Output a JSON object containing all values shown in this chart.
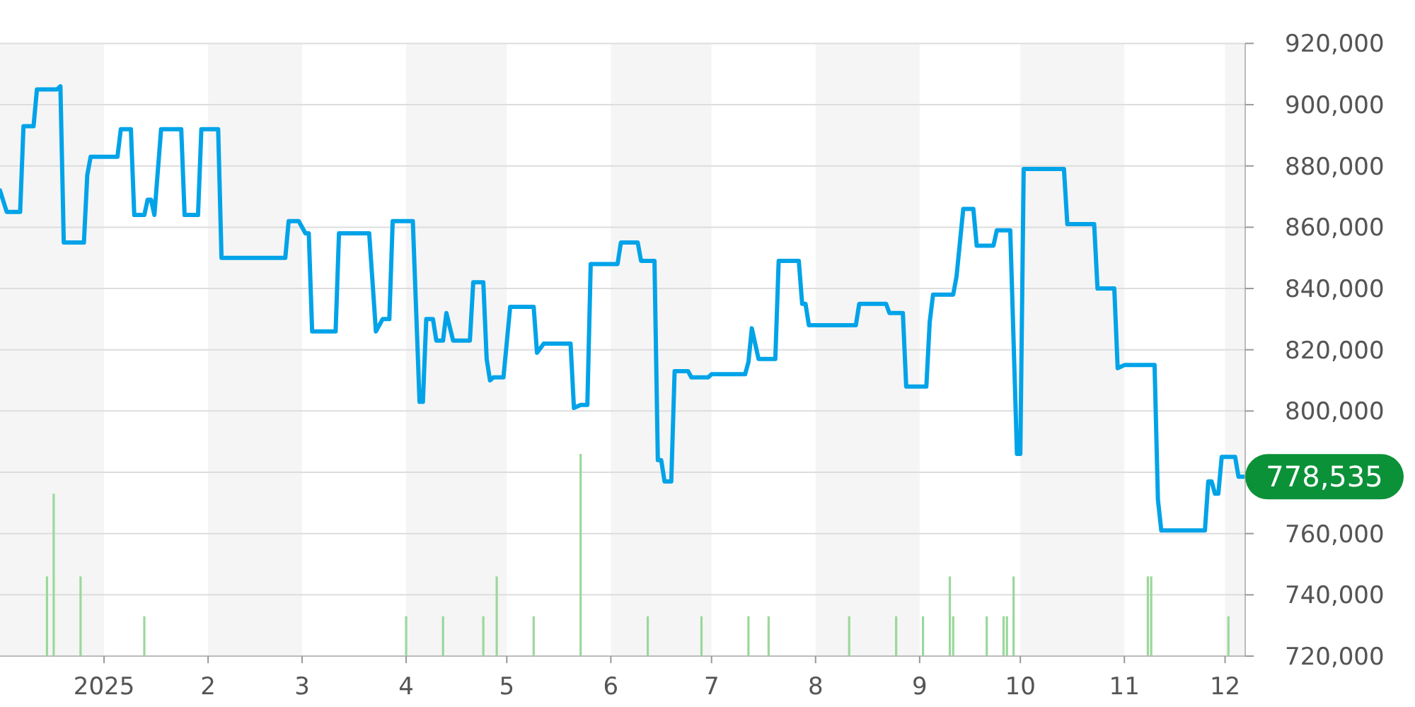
{
  "chart_data": {
    "type": "line",
    "grid": "y",
    "marker": "none",
    "line_style": "solid",
    "xlim": [
      "2024-12-01",
      "2025-12-07"
    ],
    "xticks": [
      {
        "value": "2025-01-01",
        "label": "2025"
      },
      {
        "value": "2025-02-01",
        "label": "2"
      },
      {
        "value": "2025-03-01",
        "label": "3"
      },
      {
        "value": "2025-04-01",
        "label": "4"
      },
      {
        "value": "2025-05-01",
        "label": "5"
      },
      {
        "value": "2025-06-01",
        "label": "6"
      },
      {
        "value": "2025-07-01",
        "label": "7"
      },
      {
        "value": "2025-08-01",
        "label": "8"
      },
      {
        "value": "2025-09-01",
        "label": "9"
      },
      {
        "value": "2025-10-01",
        "label": "10"
      },
      {
        "value": "2025-11-01",
        "label": "11"
      },
      {
        "value": "2025-12-01",
        "label": "12"
      }
    ],
    "ylim": [
      720000,
      920000
    ],
    "yticks": [
      {
        "value": 720000,
        "label": "720,000"
      },
      {
        "value": 740000,
        "label": "740,000"
      },
      {
        "value": 760000,
        "label": "760,000"
      },
      {
        "value": 780000,
        "label": null
      },
      {
        "value": 800000,
        "label": "800,000"
      },
      {
        "value": 820000,
        "label": "820,000"
      },
      {
        "value": 840000,
        "label": "840,000"
      },
      {
        "value": 860000,
        "label": "860,000"
      },
      {
        "value": 880000,
        "label": "880,000"
      },
      {
        "value": 900000,
        "label": "900,000"
      },
      {
        "value": 920000,
        "label": "920,000"
      }
    ],
    "bands": [
      {
        "axis": "x",
        "from": "2024-12-01",
        "to": "2025-01-01",
        "color": "#f5f5f5"
      },
      {
        "axis": "x",
        "from": "2025-02-01",
        "to": "2025-03-01",
        "color": "#f5f5f5"
      },
      {
        "axis": "x",
        "from": "2025-04-01",
        "to": "2025-05-01",
        "color": "#f5f5f5"
      },
      {
        "axis": "x",
        "from": "2025-06-01",
        "to": "2025-07-01",
        "color": "#f5f5f5"
      },
      {
        "axis": "x",
        "from": "2025-08-01",
        "to": "2025-09-01",
        "color": "#f5f5f5"
      },
      {
        "axis": "x",
        "from": "2025-10-01",
        "to": "2025-11-01",
        "color": "#f5f5f5"
      },
      {
        "axis": "x",
        "from": "2025-12-01",
        "to": "2025-12-07",
        "color": "#f5f5f5"
      }
    ],
    "annotations": [
      {
        "text": "778,535",
        "x": "2025-12-07",
        "y": 778535
      }
    ],
    "series": [
      {
        "type": "bar",
        "color": "#9ad89a",
        "x": [
          "2024-12-15",
          "2024-12-17",
          "2024-12-25",
          "2025-01-13",
          "2025-04-01",
          "2025-04-12",
          "2025-04-24",
          "2025-04-28",
          "2025-05-09",
          "2025-05-23",
          "2025-06-12",
          "2025-06-28",
          "2025-07-12",
          "2025-07-18",
          "2025-08-11",
          "2025-08-25",
          "2025-09-02",
          "2025-09-10",
          "2025-09-11",
          "2025-09-21",
          "2025-09-26",
          "2025-09-27",
          "2025-09-29",
          "2025-11-08",
          "2025-11-09",
          "2025-12-02"
        ],
        "values": [
          26000,
          53000,
          26000,
          13000,
          13000,
          13000,
          13000,
          26000,
          13000,
          66000,
          13000,
          13000,
          13000,
          13000,
          13000,
          13000,
          13000,
          26000,
          13000,
          13000,
          13000,
          13000,
          26000,
          26000,
          26000,
          13000
        ],
        "base": [
          720000,
          720000,
          720000,
          720000,
          720000,
          720000,
          720000,
          720000,
          720000,
          720000,
          720000,
          720000,
          720000,
          720000,
          720000,
          720000,
          720000,
          720000,
          720000,
          720000,
          720000,
          720000,
          720000,
          720000,
          720000,
          720000
        ]
      },
      {
        "color": "#00a3e8",
        "x": [
          "2024-12-01",
          "2024-12-03",
          "2024-12-07",
          "2024-12-08",
          "2024-12-11",
          "2024-12-12",
          "2024-12-18",
          "2024-12-19",
          "2024-12-20",
          "2024-12-26",
          "2024-12-27",
          "2024-12-28",
          "2025-01-05",
          "2025-01-06",
          "2025-01-09",
          "2025-01-10",
          "2025-01-13",
          "2025-01-14",
          "2025-01-15",
          "2025-01-16",
          "2025-01-18",
          "2025-01-24",
          "2025-01-25",
          "2025-01-29",
          "2025-01-30",
          "2025-02-04",
          "2025-02-05",
          "2025-02-24",
          "2025-02-25",
          "2025-02-28",
          "2025-03-02",
          "2025-03-03",
          "2025-03-04",
          "2025-03-11",
          "2025-03-12",
          "2025-03-21",
          "2025-03-23",
          "2025-03-25",
          "2025-03-27",
          "2025-03-28",
          "2025-04-03",
          "2025-04-05",
          "2025-04-06",
          "2025-04-07",
          "2025-04-09",
          "2025-04-10",
          "2025-04-12",
          "2025-04-13",
          "2025-04-15",
          "2025-04-20",
          "2025-04-21",
          "2025-04-24",
          "2025-04-25",
          "2025-04-26",
          "2025-04-27",
          "2025-04-30",
          "2025-05-02",
          "2025-05-09",
          "2025-05-10",
          "2025-05-12",
          "2025-05-20",
          "2025-05-21",
          "2025-05-23",
          "2025-05-25",
          "2025-05-26",
          "2025-06-03",
          "2025-06-04",
          "2025-06-09",
          "2025-06-10",
          "2025-06-14",
          "2025-06-15",
          "2025-06-16",
          "2025-06-17",
          "2025-06-19",
          "2025-06-20",
          "2025-06-24",
          "2025-06-25",
          "2025-06-30",
          "2025-07-01",
          "2025-07-11",
          "2025-07-12",
          "2025-07-13",
          "2025-07-15",
          "2025-07-20",
          "2025-07-21",
          "2025-07-27",
          "2025-07-28",
          "2025-07-29",
          "2025-07-30",
          "2025-08-13",
          "2025-08-14",
          "2025-08-22",
          "2025-08-23",
          "2025-08-27",
          "2025-08-28",
          "2025-09-03",
          "2025-09-04",
          "2025-09-05",
          "2025-09-11",
          "2025-09-12",
          "2025-09-14",
          "2025-09-17",
          "2025-09-18",
          "2025-09-23",
          "2025-09-24",
          "2025-09-28",
          "2025-09-30",
          "2025-10-01",
          "2025-10-02",
          "2025-10-14",
          "2025-10-15",
          "2025-10-23",
          "2025-10-24",
          "2025-10-29",
          "2025-10-30",
          "2025-11-01",
          "2025-11-10",
          "2025-11-11",
          "2025-11-12",
          "2025-11-25",
          "2025-11-26",
          "2025-11-27",
          "2025-11-28",
          "2025-11-29",
          "2025-11-30",
          "2025-12-04",
          "2025-12-05",
          "2025-12-07"
        ],
        "values": [
          872000,
          865000,
          865000,
          893000,
          893000,
          905000,
          905000,
          906000,
          855000,
          855000,
          877000,
          883000,
          883000,
          892000,
          892000,
          864000,
          864000,
          869000,
          869000,
          864000,
          892000,
          892000,
          864000,
          864000,
          892000,
          892000,
          850000,
          850000,
          862000,
          862000,
          858000,
          858000,
          826000,
          826000,
          858000,
          858000,
          826000,
          830000,
          830000,
          862000,
          862000,
          803000,
          803000,
          830000,
          830000,
          823000,
          823000,
          832000,
          823000,
          823000,
          842000,
          842000,
          817000,
          810000,
          811000,
          811000,
          834000,
          834000,
          819000,
          822000,
          822000,
          801000,
          802000,
          802000,
          848000,
          848000,
          855000,
          855000,
          849000,
          849000,
          784000,
          784000,
          777000,
          777000,
          813000,
          813000,
          811000,
          811000,
          812000,
          812000,
          816000,
          827000,
          817000,
          817000,
          849000,
          849000,
          835000,
          835000,
          828000,
          828000,
          835000,
          835000,
          832000,
          832000,
          808000,
          808000,
          829000,
          838000,
          838000,
          844000,
          866000,
          866000,
          854000,
          854000,
          859000,
          859000,
          786000,
          786000,
          879000,
          879000,
          861000,
          861000,
          840000,
          840000,
          814000,
          815000,
          815000,
          771000,
          761000,
          761000,
          777000,
          777000,
          773000,
          773000,
          785000,
          785000,
          778535,
          778535
        ]
      }
    ]
  }
}
